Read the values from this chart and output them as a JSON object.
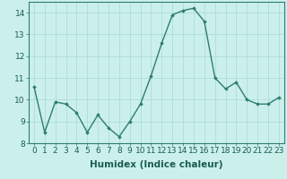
{
  "x": [
    0,
    1,
    2,
    3,
    4,
    5,
    6,
    7,
    8,
    9,
    10,
    11,
    12,
    13,
    14,
    15,
    16,
    17,
    18,
    19,
    20,
    21,
    22,
    23
  ],
  "y": [
    10.6,
    8.5,
    9.9,
    9.8,
    9.4,
    8.5,
    9.3,
    8.7,
    8.3,
    9.0,
    9.8,
    11.1,
    12.6,
    13.9,
    14.1,
    14.2,
    13.6,
    11.0,
    10.5,
    10.8,
    10.0,
    9.8,
    9.8,
    10.1
  ],
  "xlabel": "Humidex (Indice chaleur)",
  "ylim": [
    8,
    14.5
  ],
  "xlim": [
    -0.5,
    23.5
  ],
  "yticks": [
    8,
    9,
    10,
    11,
    12,
    13,
    14
  ],
  "xticks": [
    0,
    1,
    2,
    3,
    4,
    5,
    6,
    7,
    8,
    9,
    10,
    11,
    12,
    13,
    14,
    15,
    16,
    17,
    18,
    19,
    20,
    21,
    22,
    23
  ],
  "line_color": "#2E7D6E",
  "marker": "D",
  "marker_size": 1.8,
  "bg_color": "#CBF0EC",
  "grid_color": "#AEDCD8",
  "axis_bg": "#CBF0EC",
  "xlabel_fontsize": 7.5,
  "tick_fontsize": 6.5,
  "line_width": 1.0
}
